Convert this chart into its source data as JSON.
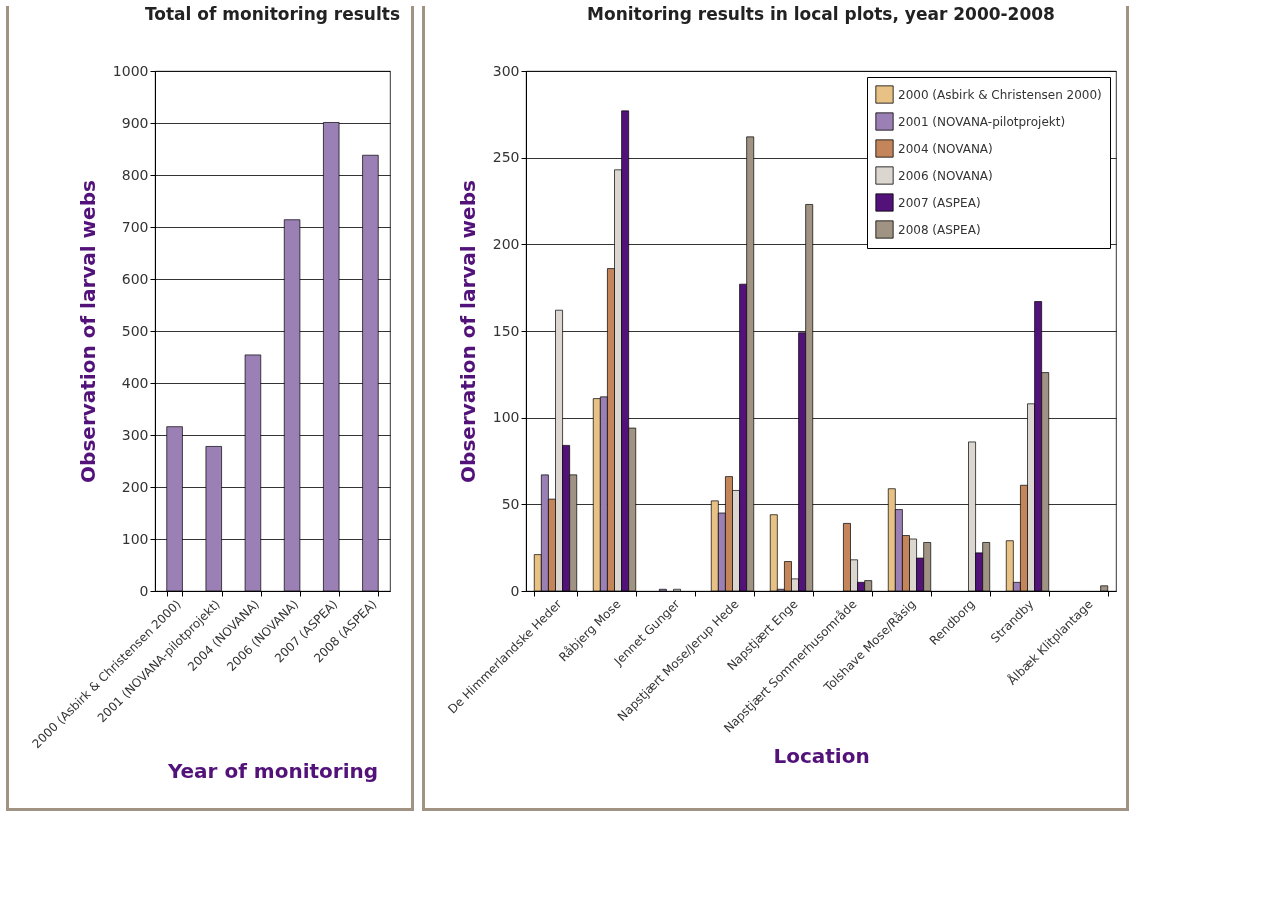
{
  "chart_data": [
    {
      "type": "bar",
      "title": "Total of monitoring results",
      "xlabel": "Year of monitoring",
      "ylabel": "Observation of larval webs",
      "categories": [
        "2000 (Asbirk & Christensen 2000)",
        "2001 (NOVANA-pilotprojekt)",
        "2004 (NOVANA)",
        "2006 (NOVANA)",
        "2007 (ASPEA)",
        "2008 (ASPEA)"
      ],
      "values": [
        316,
        278,
        454,
        714,
        901,
        838
      ],
      "color": "#9b80b5",
      "ylim": [
        0,
        1000
      ],
      "yticks": [
        0,
        100,
        200,
        300,
        400,
        500,
        600,
        700,
        800,
        900,
        1000
      ],
      "grid": "y"
    },
    {
      "type": "bar",
      "title": "Monitoring results in local plots, year 2000-2008",
      "xlabel": "Location",
      "ylabel": "Observation of larval webs",
      "categories": [
        "De Himmerlandske Heder",
        "Råbjerg Mose",
        "Jennet Gunger",
        "Napstjært Mose/Jerup Hede",
        "Napstjært Enge",
        "Napstjært Sommerhusområde",
        "Tolshave Mose/Råsig",
        "Rendborg",
        "Strandby",
        "Ålbæk Klitplantage"
      ],
      "series": [
        {
          "name": "2000 (Asbirk & Christensen 2000)",
          "color": "#e8c185",
          "values": [
            21,
            111,
            null,
            52,
            44,
            null,
            59,
            null,
            29,
            null
          ]
        },
        {
          "name": "2001 (NOVANA-pilotprojekt)",
          "color": "#9b80b5",
          "values": [
            67,
            112,
            1,
            45,
            1,
            null,
            47,
            null,
            5,
            null
          ]
        },
        {
          "name": "2004 (NOVANA)",
          "color": "#c4855a",
          "values": [
            53,
            186,
            null,
            66,
            17,
            39,
            32,
            null,
            61,
            null
          ]
        },
        {
          "name": "2006 (NOVANA)",
          "color": "#dcd6d0",
          "values": [
            162,
            243,
            1,
            58,
            7,
            18,
            30,
            86,
            108,
            null
          ]
        },
        {
          "name": "2007 (ASPEA)",
          "color": "#52127a",
          "values": [
            84,
            277,
            null,
            177,
            149,
            5,
            19,
            22,
            167,
            null
          ]
        },
        {
          "name": "2008 (ASPEA)",
          "color": "#a09383",
          "values": [
            67,
            94,
            null,
            262,
            223,
            6,
            28,
            28,
            126,
            3
          ]
        }
      ],
      "ylim": [
        0,
        300
      ],
      "yticks": [
        0,
        50,
        100,
        150,
        200,
        250,
        300
      ],
      "grid": "y",
      "legend": "top right"
    }
  ]
}
